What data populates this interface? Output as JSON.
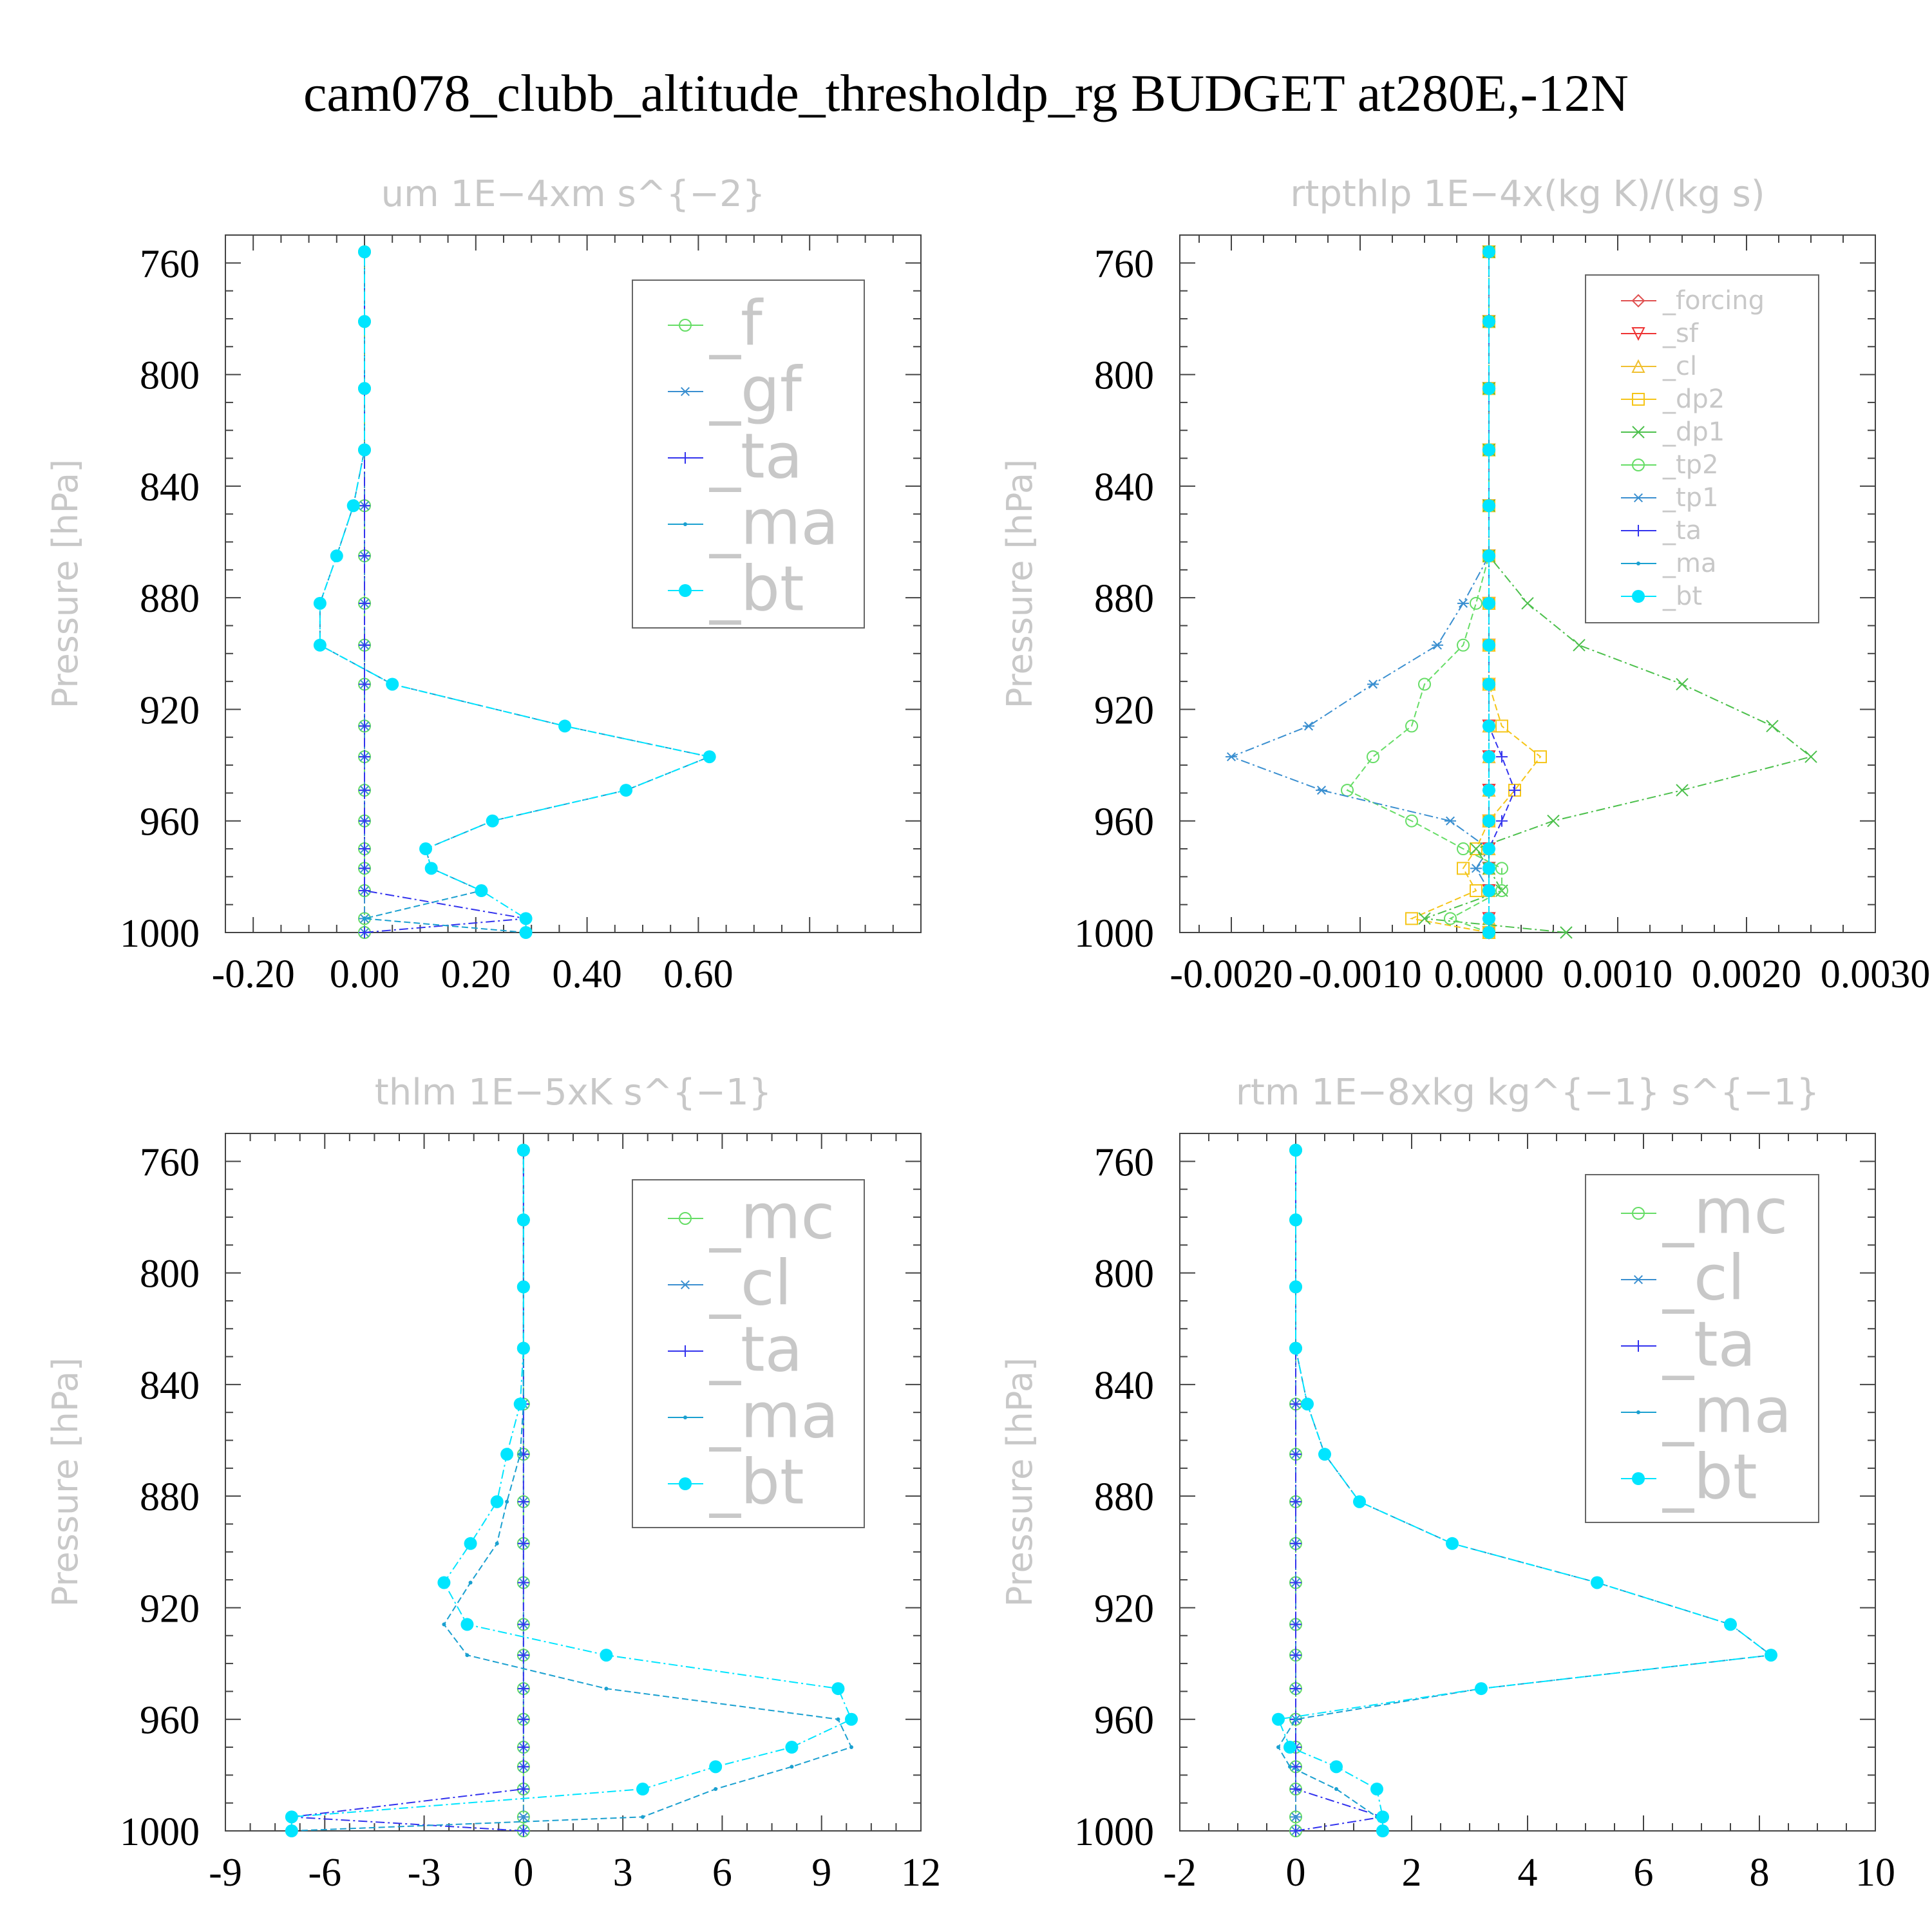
{
  "title": "cam078_clubb_altitude_thresholdp_rg  BUDGET at280E,-12N",
  "chart_data": [
    {
      "type": "line",
      "title": "um   1E−4xm s^{−2}",
      "ylabel": "Pressure [hPa]",
      "y_inverted": true,
      "xlim": [
        -0.25,
        1.0
      ],
      "ylim": [
        750,
        1000
      ],
      "xticks": [
        -0.2,
        0.0,
        0.2,
        0.4,
        0.6
      ],
      "xtick_labels": [
        "-0.20",
        "0.00",
        "0.20",
        "0.40",
        "0.60"
      ],
      "yticks": [
        760,
        800,
        840,
        880,
        920,
        960,
        1000
      ],
      "legend_position": "top-right",
      "legend_font": 96,
      "y": [
        1000,
        995,
        985,
        977,
        970,
        960,
        949,
        937,
        926,
        911,
        897,
        882,
        865,
        847,
        827,
        805,
        781,
        756
      ],
      "series": [
        {
          "name": "_f",
          "color": "#66dd66",
          "marker": "circle",
          "values": [
            0,
            0,
            0,
            0,
            0,
            0,
            0,
            0,
            0,
            0,
            0,
            0,
            0,
            0,
            0,
            0,
            0,
            0
          ]
        },
        {
          "name": "_gf",
          "color": "#3a8fd0",
          "marker": "star",
          "values": [
            0,
            0,
            0,
            0,
            0,
            0,
            0,
            0,
            0,
            0,
            0,
            0,
            0,
            0,
            0,
            0,
            0,
            0
          ]
        },
        {
          "name": "_ta",
          "color": "#3333ee",
          "marker": "plus",
          "values": [
            0,
            0.29,
            0,
            0,
            0,
            0,
            0,
            0,
            0,
            0,
            0,
            0,
            0,
            0,
            0,
            0,
            0,
            0
          ]
        },
        {
          "name": "_ma",
          "color": "#1aa0d0",
          "marker": "dot",
          "values": [
            0.29,
            0,
            0.21,
            0.12,
            0.11,
            0.23,
            0.47,
            0.62,
            0.36,
            0.05,
            -0.08,
            -0.08,
            -0.05,
            -0.02,
            0,
            0,
            0,
            0
          ]
        },
        {
          "name": "_bt",
          "color": "#00e5ff",
          "marker": "filled",
          "values": [
            0.29,
            0.29,
            0.21,
            0.12,
            0.11,
            0.23,
            0.47,
            0.62,
            0.36,
            0.05,
            -0.08,
            -0.08,
            -0.05,
            -0.02,
            0,
            0,
            0,
            0
          ]
        }
      ]
    },
    {
      "type": "line",
      "title": "rtpthlp   1E−4x(kg K)/(kg s)",
      "ylabel": "Pressure [hPa]",
      "y_inverted": true,
      "xlim": [
        -0.0024,
        0.003
      ],
      "ylim": [
        750,
        1000
      ],
      "xticks": [
        -0.002,
        -0.001,
        0.0,
        0.001,
        0.002,
        0.003
      ],
      "xtick_labels": [
        "-0.0020",
        "-0.0010",
        "0.0000",
        "0.0010",
        "0.0020",
        "0.0030"
      ],
      "yticks": [
        760,
        800,
        840,
        880,
        920,
        960,
        1000
      ],
      "legend_position": "top-right",
      "legend_font": 40,
      "y": [
        1000,
        995,
        985,
        977,
        970,
        960,
        949,
        937,
        926,
        911,
        897,
        882,
        865,
        847,
        827,
        805,
        781,
        756
      ],
      "series": [
        {
          "name": "_forcing",
          "color": "#e05050",
          "marker": "diamond",
          "values": [
            0,
            0,
            0,
            0,
            0,
            0,
            0,
            0,
            0,
            0,
            0,
            0,
            0,
            0,
            0,
            0,
            0,
            0
          ]
        },
        {
          "name": "_sf",
          "color": "#ee3333",
          "marker": "tri-down",
          "values": [
            0,
            0,
            0,
            0,
            0,
            0,
            0,
            0,
            0,
            0,
            0,
            0,
            0,
            0,
            0,
            0,
            0,
            0
          ]
        },
        {
          "name": "_cl",
          "color": "#f0c030",
          "marker": "tri-up",
          "values": [
            0,
            0,
            0,
            0,
            0,
            0,
            0,
            0,
            0,
            0,
            0,
            0,
            0,
            0,
            0,
            0,
            0,
            0
          ]
        },
        {
          "name": "_dp2",
          "color": "#f5c518",
          "marker": "square",
          "values": [
            0,
            -0.0006,
            -0.0001,
            -0.0002,
            -0.0001,
            0,
            0.0002,
            0.0004,
            0.0001,
            0,
            0,
            0,
            0,
            0,
            0,
            0,
            0,
            0
          ]
        },
        {
          "name": "_dp1",
          "color": "#4cc04c",
          "marker": "x",
          "values": [
            0.0006,
            -0.0005,
            0.0001,
            0,
            -0.0001,
            0.0005,
            0.0015,
            0.0025,
            0.0022,
            0.0015,
            0.0007,
            0.0003,
            0,
            0,
            0,
            0,
            0,
            0
          ]
        },
        {
          "name": "_tp2",
          "color": "#66dd66",
          "marker": "circle",
          "values": [
            0,
            -0.0003,
            0.0001,
            0.0001,
            -0.0002,
            -0.0006,
            -0.0011,
            -0.0009,
            -0.0006,
            -0.0005,
            -0.0002,
            -0.0001,
            0,
            0,
            0,
            0,
            0,
            0
          ]
        },
        {
          "name": "_tp1",
          "color": "#3a8fd0",
          "marker": "star",
          "values": [
            0,
            0,
            0,
            -0.0001,
            0,
            -0.0003,
            -0.0013,
            -0.002,
            -0.0014,
            -0.0009,
            -0.0004,
            -0.0002,
            0,
            0,
            0,
            0,
            0,
            0
          ]
        },
        {
          "name": "_ta",
          "color": "#3333ee",
          "marker": "plus",
          "values": [
            0,
            0,
            0,
            0,
            0,
            0.0001,
            0.0002,
            0.0001,
            0,
            0,
            0,
            0,
            0,
            0,
            0,
            0,
            0,
            0
          ]
        },
        {
          "name": "_ma",
          "color": "#1aa0d0",
          "marker": "dot",
          "values": [
            0,
            0,
            0,
            0,
            0,
            0,
            0,
            0,
            0,
            0,
            0,
            0,
            0,
            0,
            0,
            0,
            0,
            0
          ]
        },
        {
          "name": "_bt",
          "color": "#00e5ff",
          "marker": "filled",
          "values": [
            0,
            0,
            0,
            0,
            0,
            0,
            0,
            0,
            0,
            0,
            0,
            0,
            0,
            0,
            0,
            0,
            0,
            0
          ]
        }
      ]
    },
    {
      "type": "line",
      "title": "thlm   1E−5xK s^{−1}",
      "ylabel": "Pressure [hPa]",
      "y_inverted": true,
      "xlim": [
        -9,
        12
      ],
      "ylim": [
        750,
        1000
      ],
      "xticks": [
        -9,
        -6,
        -3,
        0,
        3,
        6,
        9,
        12
      ],
      "xtick_labels": [
        "-9",
        "-6",
        "-3",
        "0",
        "3",
        "6",
        "9",
        "12"
      ],
      "yticks": [
        760,
        800,
        840,
        880,
        920,
        960,
        1000
      ],
      "legend_position": "top-right",
      "legend_font": 96,
      "y": [
        1000,
        995,
        985,
        977,
        970,
        960,
        949,
        937,
        926,
        911,
        897,
        882,
        865,
        847,
        827,
        805,
        781,
        756
      ],
      "series": [
        {
          "name": "_mc",
          "color": "#66dd66",
          "marker": "circle",
          "values": [
            0,
            0,
            0,
            0,
            0,
            0,
            0,
            0,
            0,
            0,
            0,
            0,
            0,
            0,
            0,
            0,
            0,
            0
          ]
        },
        {
          "name": "_cl",
          "color": "#3a8fd0",
          "marker": "star",
          "values": [
            0,
            0,
            0,
            0,
            0,
            0,
            0,
            0,
            0,
            0,
            0,
            0,
            0,
            0,
            0,
            0,
            0,
            0
          ]
        },
        {
          "name": "_ta",
          "color": "#3333ee",
          "marker": "plus",
          "values": [
            0,
            -7,
            0,
            0,
            0,
            0,
            0,
            0,
            0,
            0,
            0,
            0,
            0,
            0,
            0,
            0,
            0,
            0
          ]
        },
        {
          "name": "_ma",
          "color": "#1aa0d0",
          "marker": "dot",
          "values": [
            -7,
            3.6,
            5.8,
            8.1,
            9.9,
            9.5,
            2.5,
            -1.7,
            -2.4,
            -1.6,
            -0.8,
            -0.5,
            -0.1,
            0,
            0,
            0,
            0,
            0
          ]
        },
        {
          "name": "_bt",
          "color": "#00e5ff",
          "marker": "filled",
          "values": [
            -7,
            -7,
            3.6,
            5.8,
            8.1,
            9.9,
            9.5,
            2.5,
            -1.7,
            -2.4,
            -1.6,
            -0.8,
            -0.5,
            -0.1,
            0,
            0,
            0,
            0
          ]
        }
      ]
    },
    {
      "type": "line",
      "title": "rtm   1E−8xkg kg^{−1} s^{−1}",
      "ylabel": "Pressure [hPa]",
      "y_inverted": true,
      "xlim": [
        -2,
        10
      ],
      "ylim": [
        750,
        1000
      ],
      "xticks": [
        -2,
        0,
        2,
        4,
        6,
        8,
        10
      ],
      "xtick_labels": [
        "-2",
        "0",
        "2",
        "4",
        "6",
        "8",
        "10"
      ],
      "yticks": [
        760,
        800,
        840,
        880,
        920,
        960,
        1000
      ],
      "legend_position": "top-right",
      "legend_font": 96,
      "y": [
        1000,
        995,
        985,
        977,
        970,
        960,
        949,
        937,
        926,
        911,
        897,
        882,
        865,
        847,
        827,
        805,
        781,
        756
      ],
      "series": [
        {
          "name": "_mc",
          "color": "#66dd66",
          "marker": "circle",
          "values": [
            0,
            0,
            0,
            0,
            0,
            0,
            0,
            0,
            0,
            0,
            0,
            0,
            0,
            0,
            0,
            0,
            0,
            0
          ]
        },
        {
          "name": "_cl",
          "color": "#3a8fd0",
          "marker": "star",
          "values": [
            0,
            0,
            0,
            0,
            0,
            0,
            0,
            0,
            0,
            0,
            0,
            0,
            0,
            0,
            0,
            0,
            0,
            0
          ]
        },
        {
          "name": "_ta",
          "color": "#3333ee",
          "marker": "plus",
          "values": [
            0,
            1.5,
            0,
            0,
            0,
            0,
            0,
            0,
            0,
            0,
            0,
            0,
            0,
            0,
            0,
            0,
            0,
            0
          ]
        },
        {
          "name": "_ma",
          "color": "#1aa0d0",
          "marker": "dot",
          "values": [
            1.5,
            1.4,
            0.7,
            -0.1,
            -0.3,
            0,
            3.2,
            8.2,
            7.5,
            5.2,
            2.7,
            1.1,
            0.5,
            0.2,
            0,
            0,
            0,
            0
          ]
        },
        {
          "name": "_bt",
          "color": "#00e5ff",
          "marker": "filled",
          "values": [
            1.5,
            1.5,
            1.4,
            0.7,
            -0.1,
            -0.3,
            3.2,
            8.2,
            7.5,
            5.2,
            2.7,
            1.1,
            0.5,
            0.2,
            0,
            0,
            0,
            0
          ]
        }
      ]
    }
  ]
}
